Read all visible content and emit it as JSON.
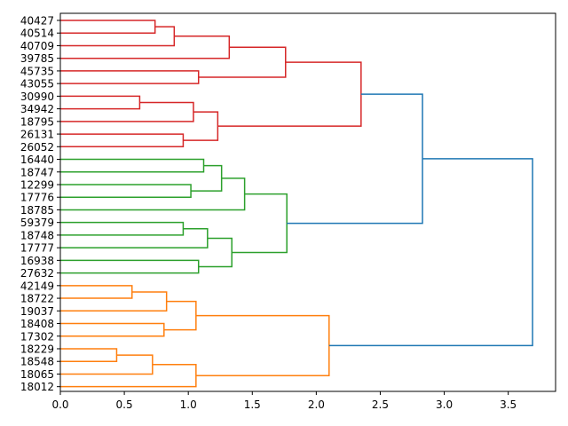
{
  "chart_data": {
    "type": "dendrogram",
    "orientation": "left",
    "title": "",
    "xlabel": "",
    "ylabel": "",
    "xlim": [
      0.0,
      3.87
    ],
    "xticks": [
      "0.0",
      "0.5",
      "1.0",
      "1.5",
      "2.0",
      "2.5",
      "3.0",
      "3.5"
    ],
    "xtick_values": [
      0,
      0.5,
      1.0,
      1.5,
      2.0,
      2.5,
      3.0,
      3.5
    ],
    "leaves": [
      "40427",
      "40514",
      "40709",
      "39785",
      "45735",
      "43055",
      "30990",
      "34942",
      "18795",
      "26131",
      "26052",
      "16440",
      "18747",
      "12299",
      "17776",
      "18785",
      "59379",
      "18748",
      "17777",
      "16938",
      "27632",
      "42149",
      "18722",
      "19037",
      "18408",
      "17302",
      "18229",
      "18548",
      "18065",
      "18012"
    ],
    "colors": {
      "cluster_1": "#d62728",
      "cluster_2": "#2ca02c",
      "cluster_3": "#ff7f0e",
      "above_threshold": "#1f77b4"
    },
    "merges": [
      {
        "a": "L0",
        "b": "L1",
        "height": 0.74,
        "color": "cluster_1"
      },
      {
        "a": "M0",
        "b": "L2",
        "height": 0.89,
        "color": "cluster_1"
      },
      {
        "a": "L4",
        "b": "L5",
        "height": 1.08,
        "color": "cluster_1"
      },
      {
        "a": "M1",
        "b": "L3",
        "height": 1.32,
        "color": "cluster_1"
      },
      {
        "a": "M3",
        "b": "M2",
        "height": 1.76,
        "color": "cluster_1"
      },
      {
        "a": "L6",
        "b": "L7",
        "height": 0.62,
        "color": "cluster_1"
      },
      {
        "a": "M5",
        "b": "L8",
        "height": 1.04,
        "color": "cluster_1"
      },
      {
        "a": "L9",
        "b": "L10",
        "height": 0.96,
        "color": "cluster_1"
      },
      {
        "a": "M6",
        "b": "M7",
        "height": 1.23,
        "color": "cluster_1"
      },
      {
        "a": "M4",
        "b": "M8",
        "height": 2.35,
        "color": "cluster_1"
      },
      {
        "a": "L11",
        "b": "L12",
        "height": 1.12,
        "color": "cluster_2"
      },
      {
        "a": "L13",
        "b": "L14",
        "height": 1.02,
        "color": "cluster_2"
      },
      {
        "a": "M10",
        "b": "M11",
        "height": 1.26,
        "color": "cluster_2"
      },
      {
        "a": "M12",
        "b": "L15",
        "height": 1.44,
        "color": "cluster_2"
      },
      {
        "a": "L16",
        "b": "L17",
        "height": 0.96,
        "color": "cluster_2"
      },
      {
        "a": "M14",
        "b": "L18",
        "height": 1.15,
        "color": "cluster_2"
      },
      {
        "a": "L19",
        "b": "L20",
        "height": 1.08,
        "color": "cluster_2"
      },
      {
        "a": "M15",
        "b": "M16",
        "height": 1.34,
        "color": "cluster_2"
      },
      {
        "a": "M13",
        "b": "M17",
        "height": 1.77,
        "color": "cluster_2"
      },
      {
        "a": "M9",
        "b": "M18",
        "height": 2.83,
        "color": "above_threshold"
      },
      {
        "a": "L21",
        "b": "L22",
        "height": 0.56,
        "color": "cluster_3"
      },
      {
        "a": "M20",
        "b": "L23",
        "height": 0.83,
        "color": "cluster_3"
      },
      {
        "a": "L24",
        "b": "L25",
        "height": 0.81,
        "color": "cluster_3"
      },
      {
        "a": "M21",
        "b": "M22",
        "height": 1.06,
        "color": "cluster_3"
      },
      {
        "a": "L26",
        "b": "L27",
        "height": 0.44,
        "color": "cluster_3"
      },
      {
        "a": "M24",
        "b": "L28",
        "height": 0.72,
        "color": "cluster_3"
      },
      {
        "a": "M25",
        "b": "L29",
        "height": 1.06,
        "color": "cluster_3"
      },
      {
        "a": "M23",
        "b": "M26",
        "height": 2.1,
        "color": "cluster_3"
      },
      {
        "a": "M19",
        "b": "M27",
        "height": 3.69,
        "color": "above_threshold"
      }
    ],
    "grid": false,
    "legend": "none"
  }
}
